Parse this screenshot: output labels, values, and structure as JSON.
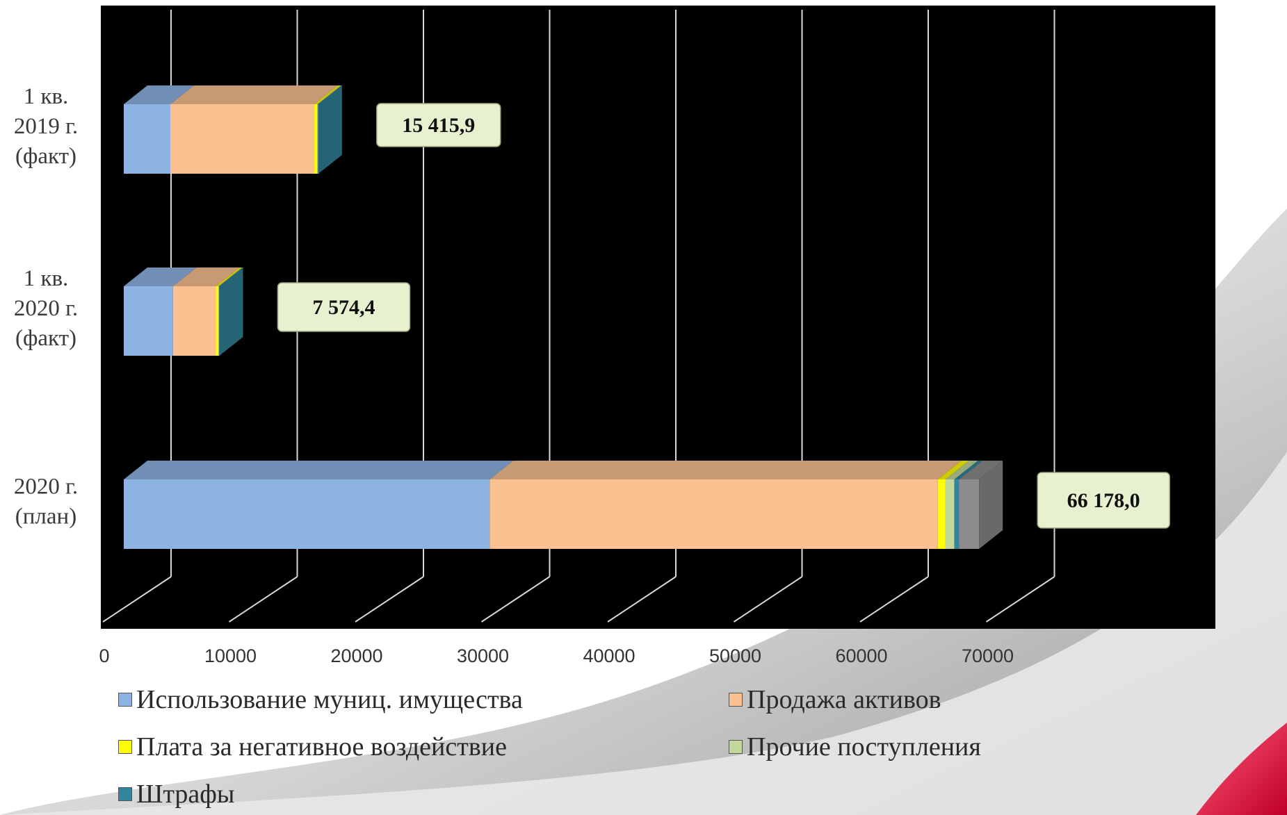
{
  "chart_data": {
    "type": "bar",
    "orientation": "horizontal",
    "stacked": true,
    "three_d": true,
    "categories": [
      "1 кв.\n2019 г.\n(факт)",
      "1 кв.\n2020 г.\n(факт)",
      "2020 г.\n(план)"
    ],
    "category_lines": [
      [
        "1 кв.",
        "2019 г.",
        "(факт)"
      ],
      [
        "1 кв.",
        "2020 г.",
        "(факт)"
      ],
      [
        "2020 г.",
        "(план)"
      ]
    ],
    "series": [
      {
        "name": "Использование муниц. имущества",
        "color": "#8db3e2",
        "values": [
          3700,
          3900,
          29000
        ]
      },
      {
        "name": "Продажа активов",
        "color": "#fac090",
        "values": [
          11400,
          3400,
          35500
        ]
      },
      {
        "name": "Плата за негативное воздействие",
        "color": "#ffff00",
        "values": [
          230,
          200,
          620
        ]
      },
      {
        "name": "Прочие поступления",
        "color": "#c3d69b",
        "values": [
          55,
          45,
          700
        ]
      },
      {
        "name": "Штрафы",
        "color": "#31859c",
        "values": [
          31,
          29,
          358
        ]
      }
    ],
    "extra_segment": {
      "color": "#8c8c8c",
      "values": [
        0,
        0,
        1600
      ]
    },
    "totals": [
      "15 415,9",
      "7 574,4",
      "66 178,0"
    ],
    "x_ticks": [
      "0",
      "10000",
      "20000",
      "30000",
      "40000",
      "50000",
      "60000",
      "70000"
    ],
    "xlim": [
      0,
      70000
    ],
    "grid": true,
    "legend_position": "bottom",
    "plot_background": "#000000"
  }
}
